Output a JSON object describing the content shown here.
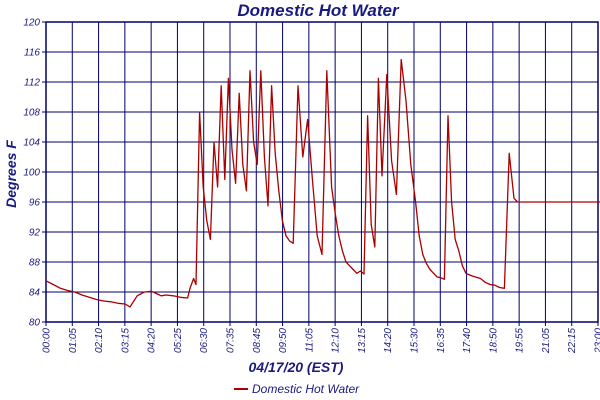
{
  "chart_data": {
    "type": "line",
    "title": "Domestic Hot Water",
    "xlabel": "04/17/20 (EST)",
    "ylabel": "Degrees F",
    "ylim": [
      80,
      120
    ],
    "yticks": [
      "120",
      "116",
      "112",
      "108",
      "104",
      "100",
      "96",
      "92",
      "88",
      "84",
      "80"
    ],
    "xticks": [
      "00:00",
      "01:05",
      "02:10",
      "03:15",
      "04:20",
      "05:25",
      "06:30",
      "07:35",
      "08:45",
      "09:50",
      "11:05",
      "12:10",
      "13:15",
      "14:20",
      "15:30",
      "16:35",
      "17:40",
      "18:50",
      "19:55",
      "21:05",
      "22:15",
      "23:00"
    ],
    "grid": true,
    "legend_position": "bottom",
    "colors": {
      "line": "#aa0000",
      "grid": "#00006e",
      "text": "#1a1a80"
    },
    "series": [
      {
        "name": "Domestic Hot Water",
        "x": [
          0,
          0.3,
          0.6,
          0.9,
          1.2,
          1.5,
          1.8,
          2.1,
          2.4,
          2.7,
          3.0,
          3.3,
          3.5,
          3.8,
          4.1,
          4.4,
          4.6,
          4.8,
          5.0,
          5.3,
          5.6,
          5.9,
          6.0,
          6.15,
          6.25,
          6.4,
          6.55,
          6.7,
          6.85,
          7.0,
          7.15,
          7.3,
          7.45,
          7.6,
          7.75,
          7.9,
          8.05,
          8.2,
          8.35,
          8.5,
          8.65,
          8.8,
          8.95,
          9.1,
          9.25,
          9.4,
          9.55,
          9.7,
          9.85,
          10.0,
          10.15,
          10.3,
          10.5,
          10.7,
          10.9,
          11.1,
          11.3,
          11.5,
          11.7,
          11.9,
          12.05,
          12.2,
          12.35,
          12.5,
          12.65,
          12.8,
          12.95,
          13.1,
          13.25,
          13.4,
          13.55,
          13.7,
          13.85,
          14.0,
          14.2,
          14.4,
          14.6,
          14.8,
          15.0,
          15.2,
          15.4,
          15.55,
          15.7,
          15.85,
          16.0,
          16.15,
          16.3,
          16.45,
          16.6,
          16.75,
          16.9,
          17.05,
          17.2,
          17.35,
          17.5,
          17.7,
          17.9,
          18.1,
          18.3,
          18.5,
          18.7,
          18.9,
          19.1,
          19.3,
          19.5,
          19.65,
          19.8,
          19.95,
          20.1,
          20.3,
          20.5,
          20.7,
          20.9,
          21.1,
          21.3,
          21.5,
          21.7,
          21.9,
          22.1,
          22.3,
          22.5,
          22.65,
          22.8,
          22.95,
          23.1,
          23.25
        ],
        "values": [
          85.5,
          85.0,
          84.5,
          84.2,
          84.0,
          83.6,
          83.3,
          83.0,
          82.8,
          82.7,
          82.5,
          82.4,
          82.0,
          83.5,
          84.0,
          84.1,
          83.8,
          83.5,
          83.6,
          83.5,
          83.3,
          83.2,
          84.5,
          85.8,
          85.0,
          108.0,
          98.0,
          93.5,
          91.0,
          104.0,
          98.0,
          111.5,
          99.0,
          112.5,
          103.0,
          98.5,
          110.5,
          101.0,
          97.5,
          113.5,
          104.0,
          101.0,
          113.5,
          102.0,
          95.5,
          111.5,
          102.5,
          97.5,
          93.5,
          91.5,
          90.8,
          90.5,
          111.5,
          102.0,
          107.0,
          99.0,
          91.5,
          89.0,
          113.5,
          98.0,
          94.5,
          91.5,
          89.5,
          88.0,
          87.5,
          87.0,
          86.5,
          86.8,
          86.4,
          107.5,
          93.0,
          90.0,
          112.5,
          99.5,
          113.0,
          101.5,
          97.0,
          115.0,
          109.5,
          101.0,
          96.0,
          91.5,
          89.0,
          87.8,
          87.0,
          86.5,
          86.0,
          85.9,
          85.7,
          107.5,
          96.0,
          91.0,
          89.5,
          87.5,
          86.5,
          86.2,
          86.0,
          85.8,
          85.3,
          85.0,
          84.9,
          84.6,
          84.5,
          102.5,
          96.5,
          96.0,
          96.0,
          96.0,
          96.0,
          96.0,
          96.0,
          96.0,
          96.0,
          96.0,
          96.0,
          96.0,
          96.0,
          96.0,
          96.0,
          96.0,
          96.0,
          96.0,
          96.0,
          96.0,
          96.0,
          96.0
        ]
      }
    ]
  }
}
